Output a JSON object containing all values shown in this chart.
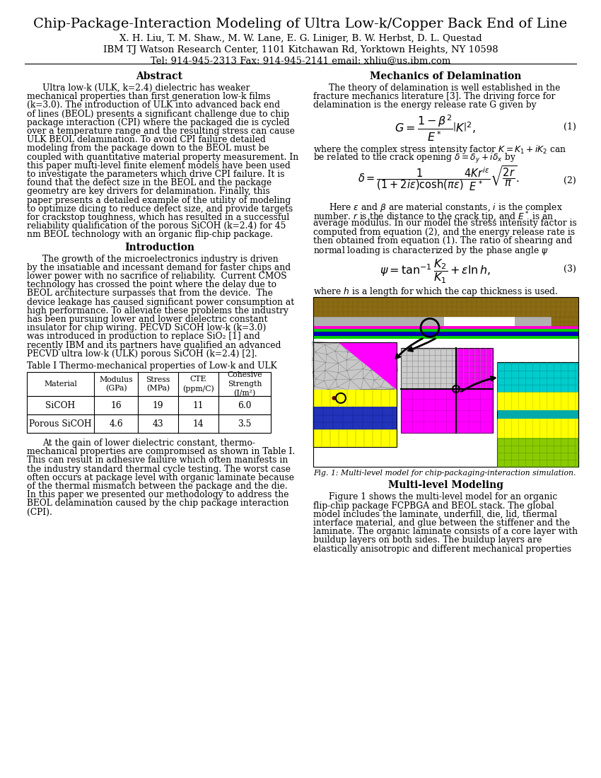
{
  "title": "Chip-Package-Interaction Modeling of Ultra Low-k/Copper Back End of Line",
  "authors": "X. H. Liu, T. M. Shaw., M. W. Lane, E. G. Liniger, B. W. Herbst, D. L. Questad",
  "affiliation": "IBM TJ Watson Research Center, 1101 Kitchawan Rd, Yorktown Heights, NY 10598",
  "contact": "Tel: 914-945-2313 Fax: 914-945-2141 email: xhliu@us.ibm.com",
  "abstract_title": "Abstract",
  "intro_title": "Introduction",
  "table_title": "Table I Thermo-mechanical properties of Low-k and ULK",
  "table_headers": [
    "Material",
    "Modulus\n(GPa)",
    "Stress\n(MPa)",
    "CTE\n(ppm/C)",
    "Cohesive\nStrength\n(J/m²)"
  ],
  "table_data": [
    [
      "SiCOH",
      "16",
      "19",
      "11",
      "6.0"
    ],
    [
      "Porous SiCOH",
      "4.6",
      "43",
      "14",
      "3.5"
    ]
  ],
  "right_col_title": "Mechanics of Delamination",
  "eq1_num": "(1)",
  "eq2_num": "(2)",
  "eq3_num": "(3)",
  "fig_caption": "Fig. 1: Multi-level model for chip-packaging-interaction simulation.",
  "multilevel_title": "Multi-level Modeling",
  "bg_color": "#ffffff",
  "text_color": "#000000",
  "abstract_lines": [
    "Ultra low-k (ULK, k=2.4) dielectric has weaker",
    "mechanical properties than first generation low-k films",
    "(k=3.0). The introduction of ULK into advanced back end",
    "of lines (BEOL) presents a significant challenge due to chip",
    "package interaction (CPI) where the packaged die is cycled",
    "over a temperature range and the resulting stress can cause",
    "ULK BEOL delamination. To avoid CPI failure detailed",
    "modeling from the package down to the BEOL must be",
    "coupled with quantitative material property measurement. In",
    "this paper multi-level finite element models have been used",
    "to investigate the parameters which drive CPI failure. It is",
    "found that the defect size in the BEOL and the package",
    "geometry are key drivers for delamination. Finally, this",
    "paper presents a detailed example of the utility of modeling",
    "to optimize dicing to reduce defect size, and provide targets",
    "for crackstop toughness, which has resulted in a successful",
    "reliability qualification of the porous SiCOH (k=2.4) for 45",
    "nm BEOL technology with an organic flip-chip package."
  ],
  "intro_lines": [
    "The growth of the microelectronics industry is driven",
    "by the insatiable and incessant demand for faster chips and",
    "lower power with no sacrifice of reliability.  Current CMOS",
    "technology has crossed the point where the delay due to",
    "BEOL architecture surpasses that from the device.  The",
    "device leakage has caused significant power consumption at",
    "high performance. To alleviate these problems the industry",
    "has been pursuing lower and lower dielectric constant",
    "insulator for chip wiring. PECVD SiCOH low-k (k=3.0)",
    "was introduced in production to replace SiO₂ [1] and",
    "recently IBM and its partners have qualified an advanced",
    "PECVD ultra low-k (ULK) porous SiCOH (k=2.4) [2]."
  ],
  "bottom_left_lines": [
    "At the gain of lower dielectric constant, thermo-",
    "mechanical properties are compromised as shown in Table I.",
    "This can result in adhesive failure which often manifests in",
    "the industry standard thermal cycle testing. The worst case",
    "often occurs at package level with organic laminate because",
    "of the thermal mismatch between the package and the die.",
    "In this paper we presented our methodology to address the",
    "BEOL delamination caused by the chip package interaction",
    "(CPI)."
  ],
  "mech_lines1": [
    "The theory of delamination is well established in the",
    "fracture mechanics literature [3]. The driving force for",
    "delamination is the energy release rate G given by"
  ],
  "mech_lines2": [
    "where the complex stress intensity factor $K = K_1 +iK_2$ can",
    "be related to the crack opening $\\delta = \\delta_y + i\\delta_x$ by"
  ],
  "mech_lines3": [
    "Here $\\varepsilon$ and $\\beta$ are material constants, $i$ is the complex",
    "number. $r$ is the distance to the crack tip, and $E^*$ is an",
    "average modulus. In our model the stress intensity factor is",
    "computed from equation (2), and the energy release rate is",
    "then obtained from equation (1). The ratio of shearing and",
    "normal loading is characterized by the phase angle $\\psi$"
  ],
  "mech_lines4": [
    "where $h$ is a length for which the cap thickness is used."
  ],
  "multilevel_lines": [
    "Figure 1 shows the multi-level model for an organic",
    "flip-chip package FCPBGA and BEOL stack. The global",
    "model includes the laminate, underfill, die, lid, thermal",
    "interface material, and glue between the stiffener and the",
    "laminate. The organic laminate consists of a core layer with",
    "buildup layers on both sides. The buildup layers are",
    "elastically anisotropic and different mechanical properties"
  ]
}
